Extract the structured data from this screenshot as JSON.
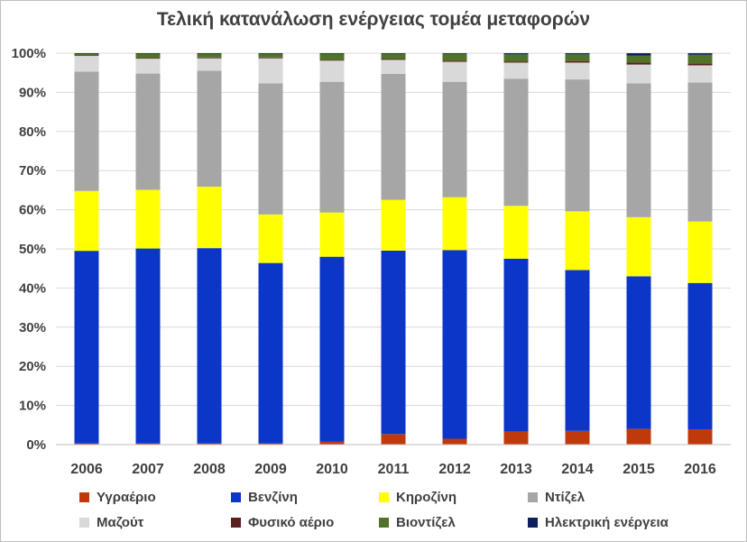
{
  "chart_data": {
    "type": "bar",
    "stacked": true,
    "percent": true,
    "title": "Τελική κατανάλωση ενέργειας τομέα μεταφορών",
    "xlabel": "",
    "ylabel": "",
    "ylim": [
      0,
      100
    ],
    "yticks": [
      "0%",
      "10%",
      "20%",
      "30%",
      "40%",
      "50%",
      "60%",
      "70%",
      "80%",
      "90%",
      "100%"
    ],
    "grid": true,
    "legend_position": "bottom",
    "categories": [
      "2006",
      "2007",
      "2008",
      "2009",
      "2010",
      "2011",
      "2012",
      "2013",
      "2014",
      "2015",
      "2016"
    ],
    "series": [
      {
        "name": "Υγραέριο",
        "color": "#c0390b",
        "values": [
          0.3,
          0.3,
          0.3,
          0.3,
          0.8,
          2.7,
          1.5,
          3.3,
          3.5,
          4.0,
          3.9
        ]
      },
      {
        "name": "Βενζίνη",
        "color": "#0b36c8",
        "values": [
          49.2,
          49.8,
          49.9,
          46.1,
          47.2,
          46.9,
          48.2,
          44.2,
          41.1,
          39.0,
          37.4
        ]
      },
      {
        "name": "Κηροζίνη",
        "color": "#ffff00",
        "values": [
          15.3,
          15.0,
          15.7,
          12.4,
          11.3,
          13.0,
          13.5,
          13.5,
          15.0,
          15.1,
          15.7
        ]
      },
      {
        "name": "Ντίζελ",
        "color": "#a6a6a6",
        "values": [
          30.5,
          29.7,
          29.6,
          33.5,
          33.4,
          32.2,
          29.5,
          32.5,
          33.7,
          34.2,
          35.5
        ]
      },
      {
        "name": "Μαζούτ",
        "color": "#d9d9d9",
        "values": [
          4.0,
          3.8,
          3.2,
          6.4,
          5.4,
          3.6,
          5.1,
          4.1,
          4.3,
          4.8,
          4.4
        ]
      },
      {
        "name": "Φυσικό αέριο",
        "color": "#5c1f1f",
        "values": [
          0.1,
          0.2,
          0.2,
          0.2,
          0.2,
          0.2,
          0.3,
          0.3,
          0.4,
          0.5,
          0.5
        ]
      },
      {
        "name": "Βιοντίζελ",
        "color": "#4f7427",
        "values": [
          0.4,
          1.0,
          0.9,
          0.9,
          1.5,
          1.3,
          1.7,
          1.8,
          1.7,
          1.8,
          2.2
        ]
      },
      {
        "name": "Ηλεκτρική ενέργεια",
        "color": "#0d1f5c",
        "values": [
          0.2,
          0.2,
          0.2,
          0.2,
          0.2,
          0.2,
          0.2,
          0.3,
          0.3,
          0.6,
          0.4
        ]
      }
    ]
  }
}
